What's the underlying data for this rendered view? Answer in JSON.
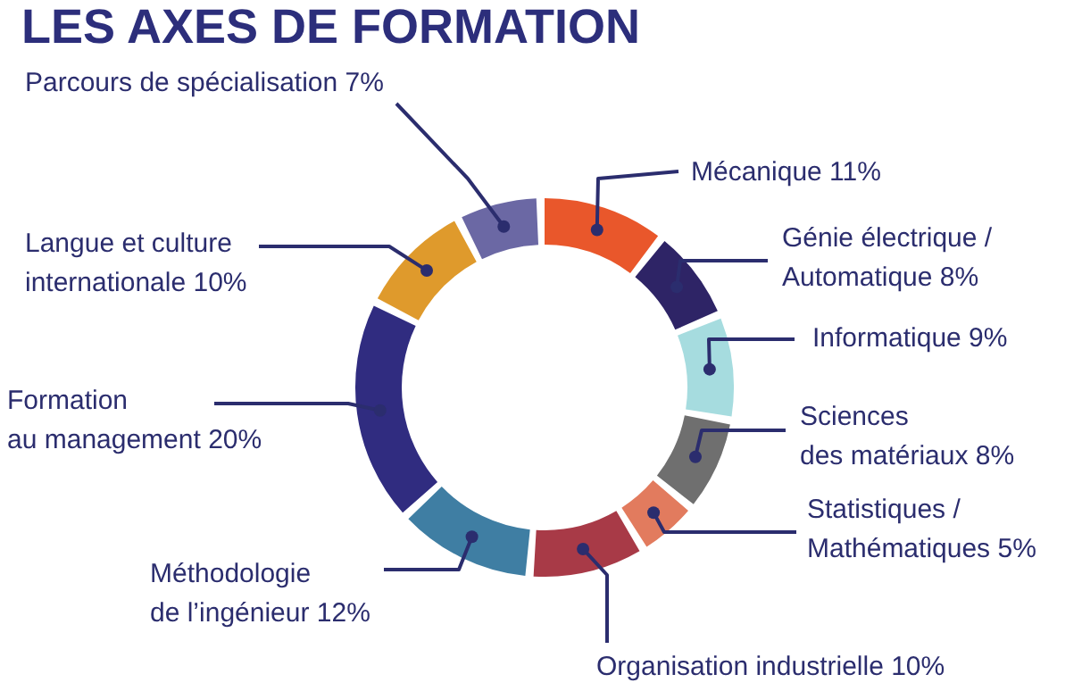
{
  "chart_data": {
    "type": "donut",
    "title": "LES AXES DE FORMATION",
    "categories": [
      "Mécanique",
      "Génie électrique / Automatique",
      "Informatique",
      "Sciences des matériaux",
      "Statistiques / Mathématiques",
      "Organisation industrielle",
      "Méthodologie de l’ingénieur",
      "Formation au management",
      "Langue et culture internationale",
      "Parcours de spécialisation"
    ],
    "values": [
      11,
      8,
      9,
      8,
      5,
      10,
      12,
      20,
      10,
      7
    ],
    "value_labels": [
      "11%",
      "8%",
      "9%",
      "8%",
      "5%",
      "10%",
      "12%",
      "20%",
      "10%",
      "7%"
    ],
    "colors": [
      "#e9572b",
      "#2e2466",
      "#a6dcdf",
      "#6f6f6f",
      "#e27b5e",
      "#a83a47",
      "#3f7ea3",
      "#302c80",
      "#df9a2c",
      "#6b68a4"
    ]
  }
}
